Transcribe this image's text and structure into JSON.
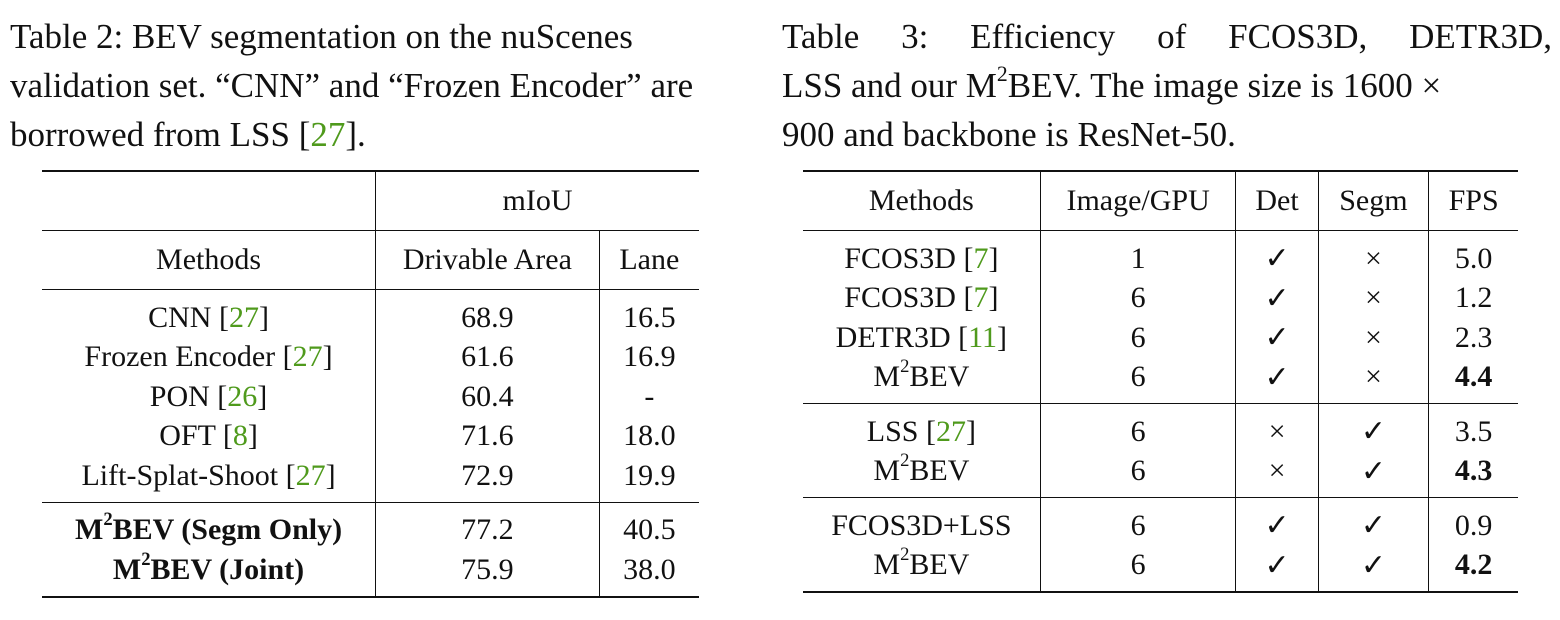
{
  "table2": {
    "caption": {
      "label": "Table 2:",
      "text": "BEV segmentation on the nuScenes validation set. “CNN” and “Frozen Encoder” are borrowed from LSS [",
      "ref": "27",
      "end": "]."
    },
    "group_header": "mIoU",
    "headers": [
      "Methods",
      "Drivable Area",
      "Lane"
    ],
    "rows": [
      {
        "method": "CNN [",
        "ref": "27",
        "close": "]",
        "drivable": "68.9",
        "lane": "16.5"
      },
      {
        "method": "Frozen Encoder [",
        "ref": "27",
        "close": "]",
        "drivable": "61.6",
        "lane": "16.9"
      },
      {
        "method": "PON [",
        "ref": "26",
        "close": "]",
        "drivable": "60.4",
        "lane": "-"
      },
      {
        "method": "OFT [",
        "ref": "8",
        "close": "]",
        "drivable": "71.6",
        "lane": "18.0"
      },
      {
        "method": "Lift-Splat-Shoot [",
        "ref": "27",
        "close": "]",
        "drivable": "72.9",
        "lane": "19.9"
      }
    ],
    "ours": [
      {
        "m": "M",
        "sup": "2",
        "rest": "BEV (Segm Only)",
        "drivable": "77.2",
        "lane": "40.5"
      },
      {
        "m": "M",
        "sup": "2",
        "rest": "BEV (Joint)",
        "drivable": "75.9",
        "lane": "38.0"
      }
    ]
  },
  "table3": {
    "caption": {
      "label": "Table 3:",
      "line1": "Efficiency of FCOS3D, DETR3D,",
      "line2a": "LSS and our M",
      "sup": "2",
      "line2b": "BEV. The image size is 1600 ×",
      "line3": "900 and backbone is ResNet-50."
    },
    "headers": [
      "Methods",
      "Image/GPU",
      "Det",
      "Segm",
      "FPS"
    ],
    "groups": [
      [
        {
          "method": "FCOS3D [",
          "ref": "7",
          "close": "]",
          "img": "1",
          "det": "✓",
          "segm": "×",
          "fps": "5.0"
        },
        {
          "method": "FCOS3D [",
          "ref": "7",
          "close": "]",
          "img": "6",
          "det": "✓",
          "segm": "×",
          "fps": "1.2"
        },
        {
          "method": "DETR3D [",
          "ref": "11",
          "close": "]",
          "img": "6",
          "det": "✓",
          "segm": "×",
          "fps": "2.3"
        },
        {
          "m": "M",
          "sup": "2",
          "rest": "BEV",
          "img": "6",
          "det": "✓",
          "segm": "×",
          "fps": "4.4"
        }
      ],
      [
        {
          "method": "LSS [",
          "ref": "27",
          "close": "]",
          "img": "6",
          "det": "×",
          "segm": "✓",
          "fps": "3.5"
        },
        {
          "m": "M",
          "sup": "2",
          "rest": "BEV",
          "img": "6",
          "det": "×",
          "segm": "✓",
          "fps": "4.3"
        }
      ],
      [
        {
          "method": "FCOS3D+LSS",
          "img": "6",
          "det": "✓",
          "segm": "✓",
          "fps": "0.9"
        },
        {
          "m": "M",
          "sup": "2",
          "rest": "BEV",
          "img": "6",
          "det": "✓",
          "segm": "✓",
          "fps": "4.2"
        }
      ]
    ]
  }
}
